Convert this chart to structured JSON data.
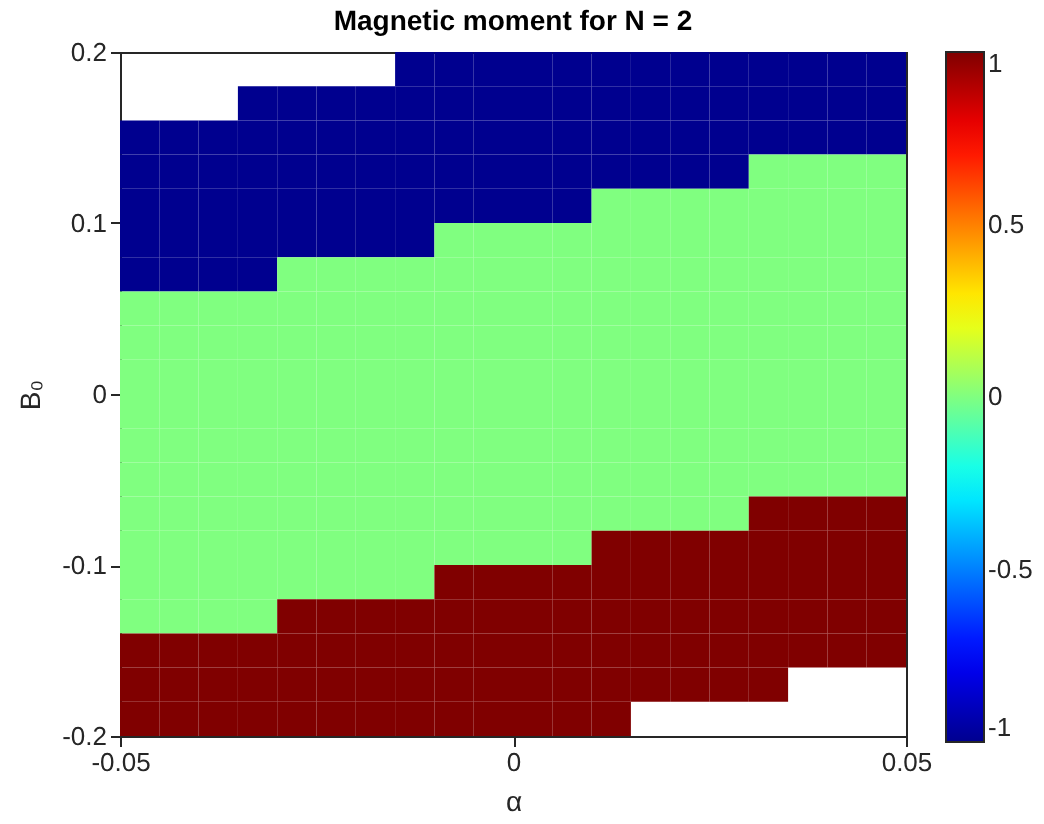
{
  "chart_data": {
    "type": "heatmap",
    "title": "Magnetic moment for N = 2",
    "xlabel": "α",
    "ylabel": "B₀",
    "x": [
      -0.0475,
      -0.0425,
      -0.0375,
      -0.0325,
      -0.0275,
      -0.0225,
      -0.0175,
      -0.0125,
      -0.0075,
      -0.0025,
      0.0025,
      0.0075,
      0.0125,
      0.0175,
      0.0225,
      0.0275,
      0.0325,
      0.0375,
      0.0425,
      0.0475
    ],
    "cells": [
      [
        null,
        null,
        null,
        null,
        null,
        null,
        null,
        -1,
        -1,
        -1,
        -1,
        -1,
        -1,
        -1,
        -1,
        -1,
        -1,
        -1,
        -1,
        -1
      ],
      [
        null,
        null,
        null,
        -1,
        -1,
        -1,
        -1,
        -1,
        -1,
        -1,
        -1,
        -1,
        -1,
        -1,
        -1,
        -1,
        -1,
        -1,
        -1,
        -1
      ],
      [
        -1,
        -1,
        -1,
        -1,
        -1,
        -1,
        -1,
        -1,
        -1,
        -1,
        -1,
        -1,
        -1,
        -1,
        -1,
        -1,
        -1,
        -1,
        -1,
        -1
      ],
      [
        -1,
        -1,
        -1,
        -1,
        -1,
        -1,
        -1,
        -1,
        -1,
        -1,
        -1,
        -1,
        -1,
        -1,
        -1,
        -1,
        0,
        0,
        0,
        0
      ],
      [
        -1,
        -1,
        -1,
        -1,
        -1,
        -1,
        -1,
        -1,
        -1,
        -1,
        -1,
        -1,
        0,
        0,
        0,
        0,
        0,
        0,
        0,
        0
      ],
      [
        -1,
        -1,
        -1,
        -1,
        -1,
        -1,
        -1,
        -1,
        0,
        0,
        0,
        0,
        0,
        0,
        0,
        0,
        0,
        0,
        0,
        0
      ],
      [
        -1,
        -1,
        -1,
        -1,
        0,
        0,
        0,
        0,
        0,
        0,
        0,
        0,
        0,
        0,
        0,
        0,
        0,
        0,
        0,
        0
      ],
      [
        0,
        0,
        0,
        0,
        0,
        0,
        0,
        0,
        0,
        0,
        0,
        0,
        0,
        0,
        0,
        0,
        0,
        0,
        0,
        0
      ],
      [
        0,
        0,
        0,
        0,
        0,
        0,
        0,
        0,
        0,
        0,
        0,
        0,
        0,
        0,
        0,
        0,
        0,
        0,
        0,
        0
      ],
      [
        0,
        0,
        0,
        0,
        0,
        0,
        0,
        0,
        0,
        0,
        0,
        0,
        0,
        0,
        0,
        0,
        0,
        0,
        0,
        0
      ],
      [
        0,
        0,
        0,
        0,
        0,
        0,
        0,
        0,
        0,
        0,
        0,
        0,
        0,
        0,
        0,
        0,
        0,
        0,
        0,
        0
      ],
      [
        0,
        0,
        0,
        0,
        0,
        0,
        0,
        0,
        0,
        0,
        0,
        0,
        0,
        0,
        0,
        0,
        0,
        0,
        0,
        0
      ],
      [
        0,
        0,
        0,
        0,
        0,
        0,
        0,
        0,
        0,
        0,
        0,
        0,
        0,
        0,
        0,
        0,
        0,
        0,
        0,
        0
      ],
      [
        0,
        0,
        0,
        0,
        0,
        0,
        0,
        0,
        0,
        0,
        0,
        0,
        0,
        0,
        0,
        0,
        1,
        1,
        1,
        1
      ],
      [
        0,
        0,
        0,
        0,
        0,
        0,
        0,
        0,
        0,
        0,
        0,
        0,
        1,
        1,
        1,
        1,
        1,
        1,
        1,
        1
      ],
      [
        0,
        0,
        0,
        0,
        0,
        0,
        0,
        0,
        1,
        1,
        1,
        1,
        1,
        1,
        1,
        1,
        1,
        1,
        1,
        1
      ],
      [
        0,
        0,
        0,
        0,
        1,
        1,
        1,
        1,
        1,
        1,
        1,
        1,
        1,
        1,
        1,
        1,
        1,
        1,
        1,
        1
      ],
      [
        1,
        1,
        1,
        1,
        1,
        1,
        1,
        1,
        1,
        1,
        1,
        1,
        1,
        1,
        1,
        1,
        1,
        1,
        1,
        1
      ],
      [
        1,
        1,
        1,
        1,
        1,
        1,
        1,
        1,
        1,
        1,
        1,
        1,
        1,
        1,
        1,
        1,
        1,
        null,
        null,
        null
      ],
      [
        1,
        1,
        1,
        1,
        1,
        1,
        1,
        1,
        1,
        1,
        1,
        1,
        1,
        null,
        null,
        null,
        null,
        null,
        null,
        null
      ]
    ],
    "xlim": [
      -0.05,
      0.05
    ],
    "xticks": [
      -0.05,
      0,
      0.05
    ],
    "ylim": [
      -0.2,
      0.2
    ],
    "yticks": [
      -0.2,
      -0.1,
      0,
      0.1,
      0.2
    ],
    "clim": [
      -1,
      1
    ],
    "cticks": [
      -1,
      -0.5,
      0,
      0.5,
      1
    ]
  }
}
